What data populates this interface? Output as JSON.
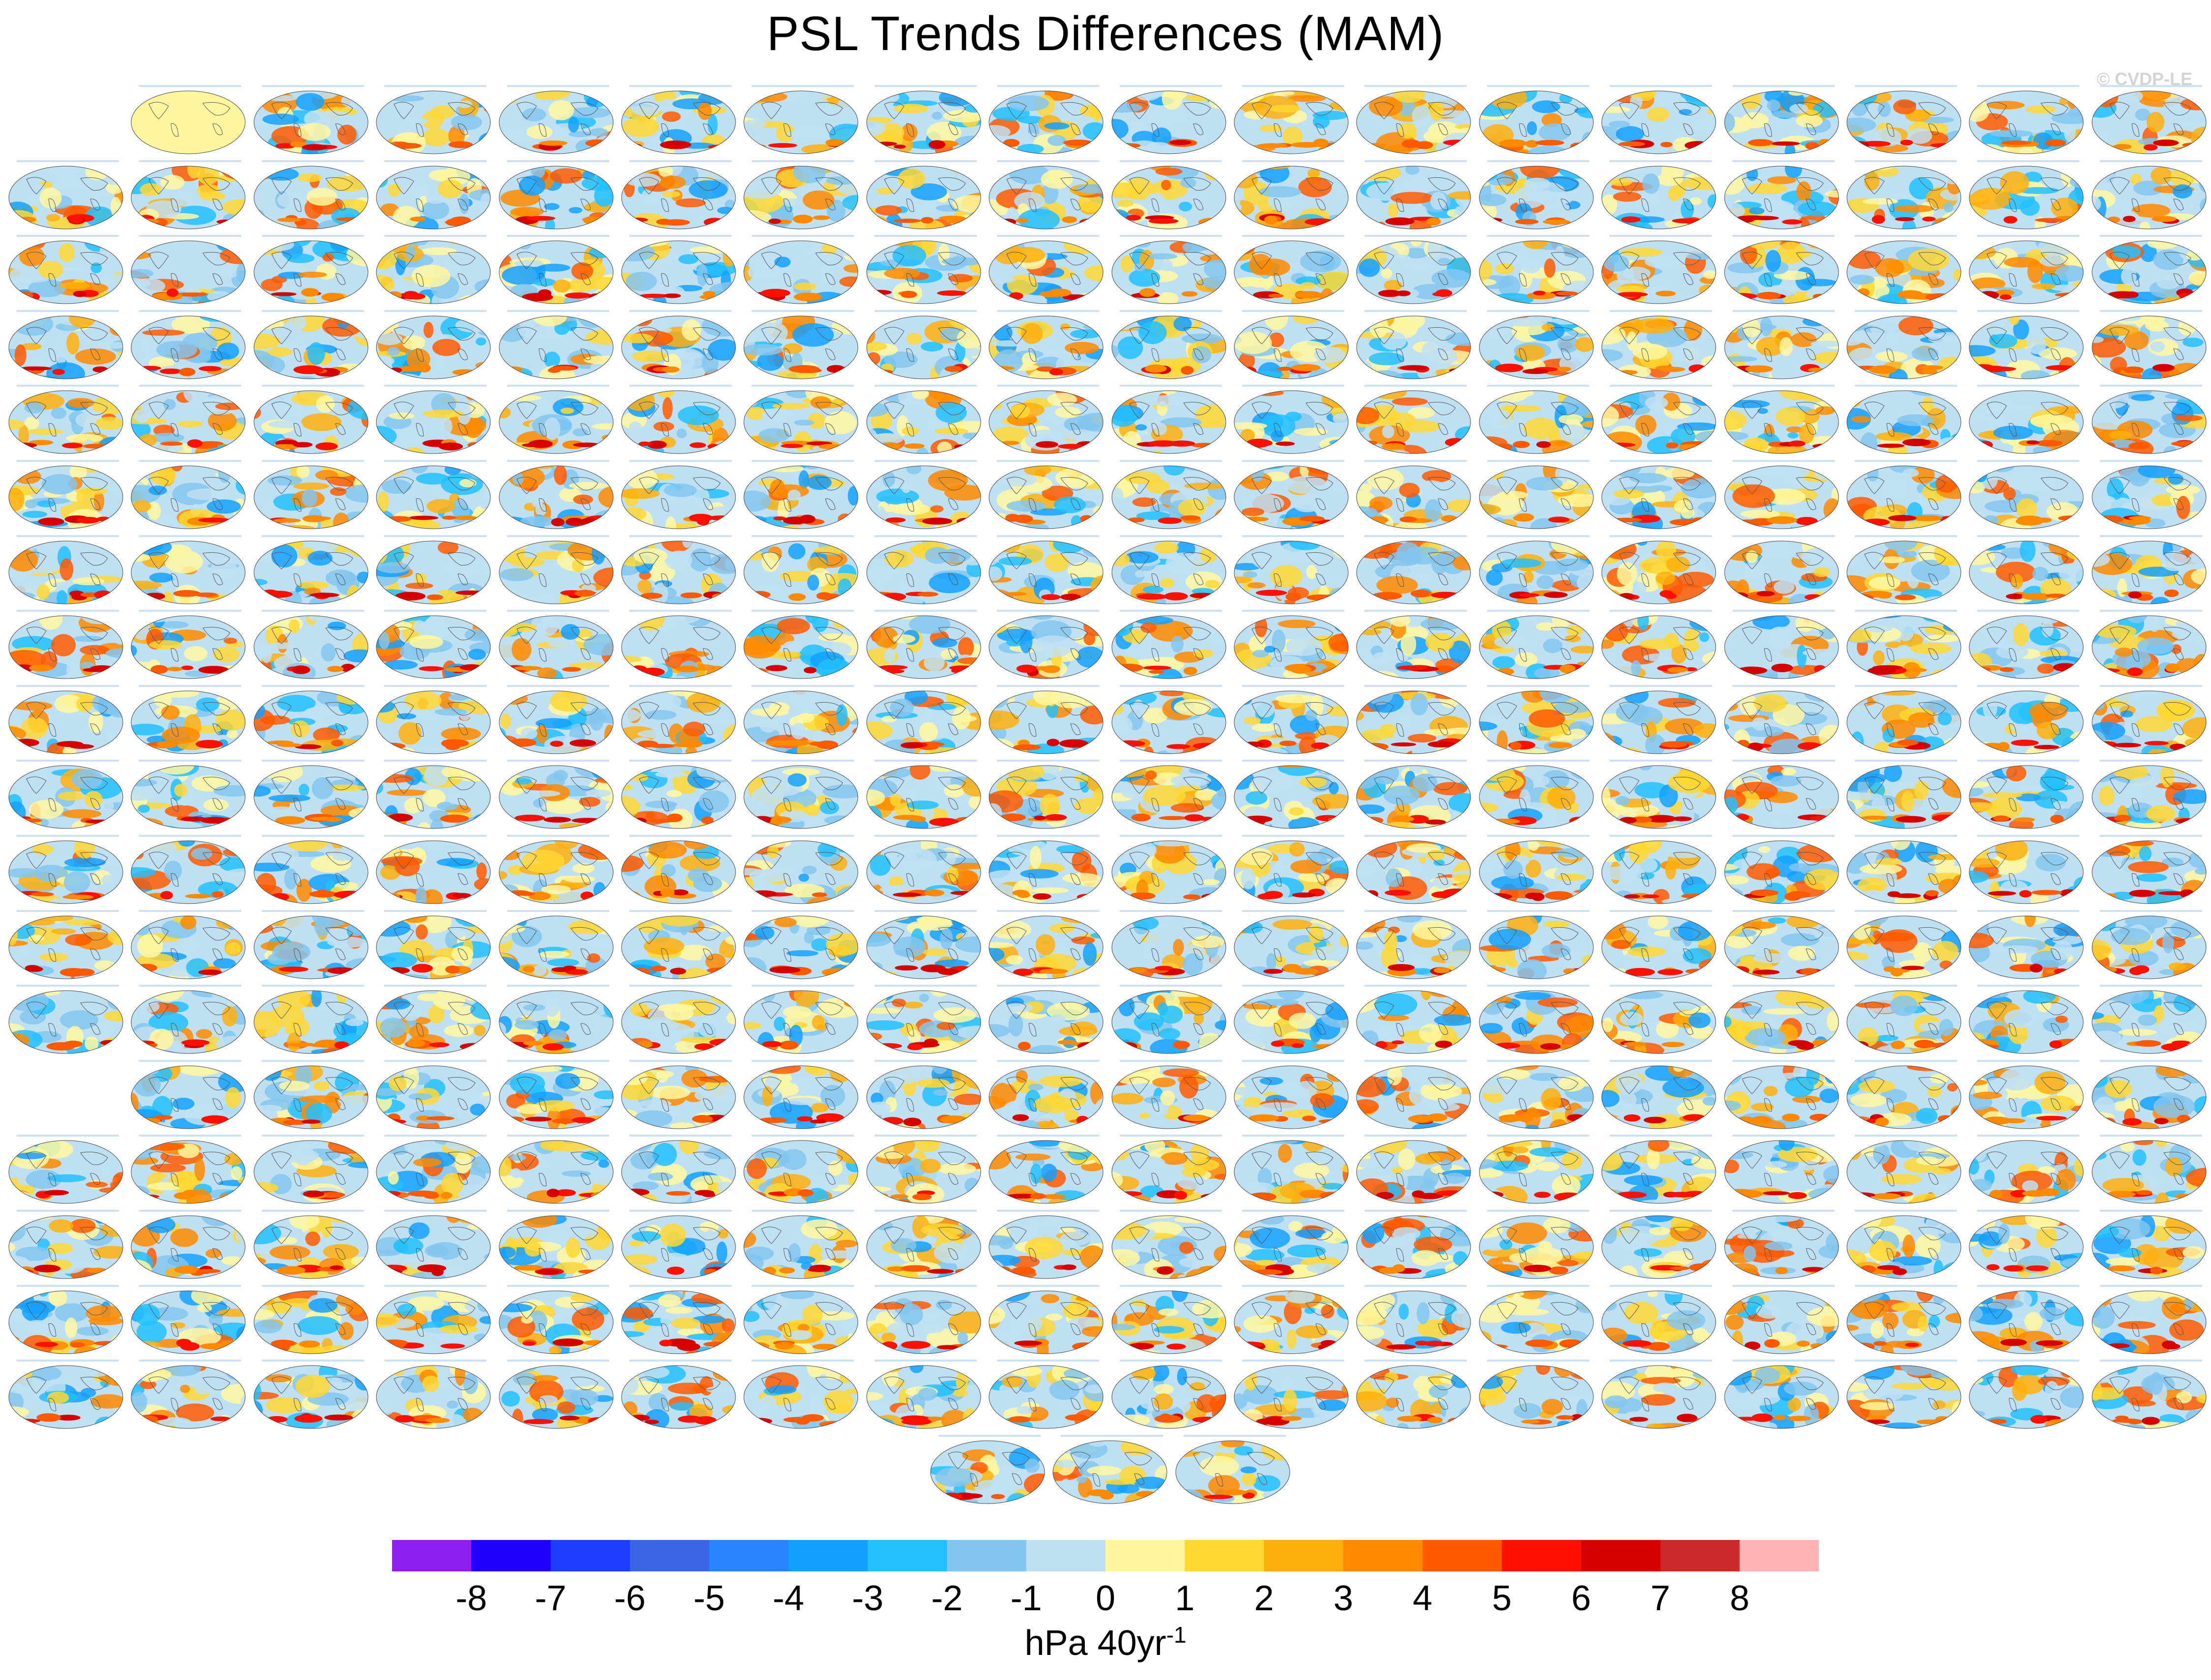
{
  "title": "PSL Trends Differences (MAM)",
  "watermark": "© CVDP-LE",
  "chart_data": {
    "type": "heatmap",
    "title": "PSL Trends Differences (MAM)",
    "grid": {
      "rows": 18,
      "cols": 18,
      "first_row_start_col": 1,
      "row_13_start_col": 1,
      "final_row_panels": 3
    },
    "colorbar": {
      "colors": [
        "#8c1eee",
        "#2200ff",
        "#1f3dff",
        "#3c64e6",
        "#2a84ff",
        "#14a0ff",
        "#23c0ff",
        "#84c5ef",
        "#bfe0f3",
        "#fff7a0",
        "#ffd733",
        "#ffaf0d",
        "#ff8a00",
        "#ff5a00",
        "#ff1000",
        "#d60000",
        "#cc2a2a",
        "#ffb5b5"
      ],
      "tick_labels": [
        "-8",
        "-7",
        "-6",
        "-5",
        "-4",
        "-3",
        "-2",
        "-1",
        "0",
        "1",
        "2",
        "3",
        "4",
        "5",
        "6",
        "7",
        "8"
      ],
      "units_label": "hPa 40yr",
      "units_exponent": "-1"
    }
  }
}
